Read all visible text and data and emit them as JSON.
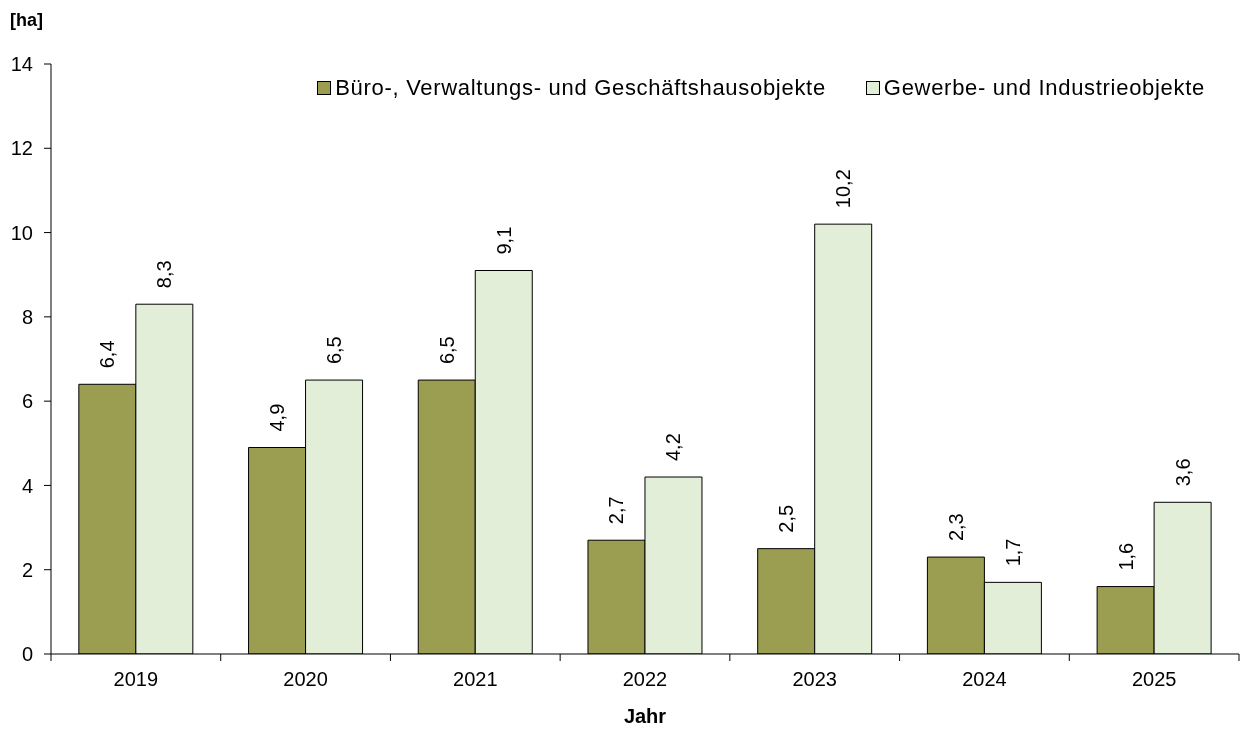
{
  "chart_data": {
    "type": "bar",
    "xlabel": "Jahr",
    "ylabel": "[ha]",
    "categories": [
      "2019",
      "2020",
      "2021",
      "2022",
      "2023",
      "2024",
      "2025"
    ],
    "series": [
      {
        "name": "Büro-, Verwaltungs- und Geschäftshausobjekte",
        "color": "#9b9d51",
        "values": [
          6.4,
          4.9,
          6.5,
          2.7,
          2.5,
          2.3,
          1.6
        ],
        "value_labels": [
          "6,4",
          "4,9",
          "6,5",
          "2,7",
          "2,5",
          "2,3",
          "1,6"
        ]
      },
      {
        "name": "Gewerbe- und Industrieobjekte",
        "color": "#e2eed8",
        "values": [
          8.3,
          6.5,
          9.1,
          4.2,
          10.2,
          1.7,
          3.6
        ],
        "value_labels": [
          "8,3",
          "6,5",
          "9,1",
          "4,2",
          "10,2",
          "1,7",
          "3,6"
        ]
      }
    ],
    "ylim": [
      0,
      14
    ],
    "yticks": [
      0,
      2,
      4,
      6,
      8,
      10,
      12,
      14
    ],
    "legend": "top right"
  }
}
